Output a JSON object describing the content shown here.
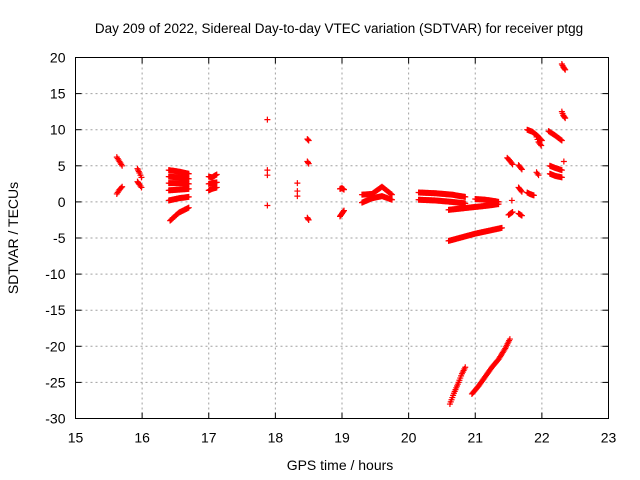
{
  "chart_data": {
    "type": "scatter",
    "title": "Day 209 of 2022, Sidereal Day-to-day VTEC variation (SDTVAR) for receiver ptgg",
    "xlabel": "GPS time / hours",
    "ylabel": "SDTVAR / TECUs",
    "xlim": [
      15,
      23
    ],
    "ylim": [
      -30,
      20
    ],
    "xticks": [
      15,
      16,
      17,
      18,
      19,
      20,
      21,
      22,
      23
    ],
    "yticks": [
      -30,
      -25,
      -20,
      -15,
      -10,
      -5,
      0,
      5,
      10,
      15,
      20
    ],
    "grid": true,
    "marker": "plus",
    "color": "#ff0000",
    "tracks": [
      {
        "x": [
          15.62,
          15.66,
          15.7
        ],
        "y": [
          6.2,
          5.6,
          5.0
        ]
      },
      {
        "x": [
          15.62,
          15.66,
          15.7
        ],
        "y": [
          1.1,
          1.7,
          2.1
        ]
      },
      {
        "x": [
          15.93,
          15.96,
          15.99
        ],
        "y": [
          4.6,
          4.0,
          3.4
        ]
      },
      {
        "x": [
          15.93,
          15.96,
          15.99
        ],
        "y": [
          2.8,
          2.4,
          2.0
        ]
      },
      {
        "x": [
          16.4,
          16.55,
          16.7
        ],
        "y": [
          4.4,
          4.2,
          3.9
        ]
      },
      {
        "x": [
          16.4,
          16.55,
          16.7
        ],
        "y": [
          3.5,
          3.4,
          3.2
        ]
      },
      {
        "x": [
          16.4,
          16.55,
          16.7
        ],
        "y": [
          2.6,
          2.6,
          2.5
        ]
      },
      {
        "x": [
          16.4,
          16.55,
          16.7
        ],
        "y": [
          1.6,
          1.7,
          1.8
        ]
      },
      {
        "x": [
          16.4,
          16.55,
          16.7
        ],
        "y": [
          0.2,
          0.5,
          0.7
        ]
      },
      {
        "x": [
          16.42,
          16.55,
          16.7
        ],
        "y": [
          -2.6,
          -1.5,
          -0.8
        ]
      },
      {
        "x": [
          17.0,
          17.05,
          17.12
        ],
        "y": [
          3.5,
          3.4,
          3.8
        ]
      },
      {
        "x": [
          17.0,
          17.05,
          17.12
        ],
        "y": [
          2.5,
          2.6,
          2.7
        ]
      },
      {
        "x": [
          17.0,
          17.05,
          17.12
        ],
        "y": [
          1.6,
          1.8,
          2.0
        ]
      },
      {
        "x": [
          17.88
        ],
        "y": [
          11.4
        ]
      },
      {
        "x": [
          17.88,
          17.88
        ],
        "y": [
          4.4,
          3.7
        ]
      },
      {
        "x": [
          17.88
        ],
        "y": [
          -0.5
        ]
      },
      {
        "x": [
          18.33,
          18.33,
          18.33
        ],
        "y": [
          2.6,
          1.5,
          0.8
        ]
      },
      {
        "x": [
          18.48,
          18.5
        ],
        "y": [
          8.7,
          8.5
        ]
      },
      {
        "x": [
          18.48,
          18.5
        ],
        "y": [
          5.6,
          5.3
        ]
      },
      {
        "x": [
          18.48,
          18.5
        ],
        "y": [
          -2.2,
          -2.5
        ]
      },
      {
        "x": [
          18.97,
          19.0,
          19.03
        ],
        "y": [
          1.8,
          1.9,
          1.7
        ]
      },
      {
        "x": [
          18.97,
          19.0,
          19.03
        ],
        "y": [
          -2.0,
          -1.6,
          -1.2
        ]
      },
      {
        "x": [
          19.3,
          19.45,
          19.6,
          19.75
        ],
        "y": [
          1.0,
          1.1,
          2.1,
          1.0
        ]
      },
      {
        "x": [
          19.3,
          19.45,
          19.6,
          19.75
        ],
        "y": [
          -0.1,
          0.5,
          0.8,
          0.3
        ]
      },
      {
        "x": [
          20.15,
          20.4,
          20.65,
          20.85
        ],
        "y": [
          1.3,
          1.2,
          1.0,
          0.7
        ]
      },
      {
        "x": [
          20.15,
          20.4,
          20.65,
          20.85
        ],
        "y": [
          0.3,
          0.2,
          0.0,
          -0.2
        ]
      },
      {
        "x": [
          20.6,
          20.8,
          21.0,
          21.2,
          21.35
        ],
        "y": [
          -1.1,
          -0.9,
          -0.7,
          -0.5,
          -0.3
        ]
      },
      {
        "x": [
          21.0,
          21.15,
          21.3,
          21.35
        ],
        "y": [
          0.4,
          0.3,
          0.1,
          0.0
        ]
      },
      {
        "x": [
          20.6,
          20.8,
          21.0,
          21.2,
          21.4
        ],
        "y": [
          -5.4,
          -4.9,
          -4.4,
          -4.0,
          -3.6
        ]
      },
      {
        "x": [
          20.62,
          20.68,
          20.75,
          20.8,
          20.85
        ],
        "y": [
          -28.0,
          -26.5,
          -25.0,
          -23.8,
          -22.9
        ]
      },
      {
        "x": [
          20.95,
          21.05,
          21.15,
          21.25,
          21.35,
          21.45,
          21.52
        ],
        "y": [
          -26.6,
          -25.5,
          -24.2,
          -22.9,
          -21.8,
          -20.3,
          -19.0
        ]
      },
      {
        "x": [
          21.48,
          21.52,
          21.56
        ],
        "y": [
          6.1,
          5.7,
          5.2
        ]
      },
      {
        "x": [
          21.5,
          21.56
        ],
        "y": [
          -1.8,
          -1.4
        ]
      },
      {
        "x": [
          21.55
        ],
        "y": [
          0.2
        ]
      },
      {
        "x": [
          21.65,
          21.7
        ],
        "y": [
          5.1,
          4.5
        ]
      },
      {
        "x": [
          21.65,
          21.7
        ],
        "y": [
          2.0,
          1.4
        ]
      },
      {
        "x": [
          21.65,
          21.7
        ],
        "y": [
          -1.6,
          -1.9
        ]
      },
      {
        "x": [
          21.78,
          21.82,
          21.88
        ],
        "y": [
          1.3,
          1.1,
          0.9
        ]
      },
      {
        "x": [
          21.78,
          21.86,
          21.94,
          22.0
        ],
        "y": [
          10.0,
          9.7,
          9.1,
          8.5
        ]
      },
      {
        "x": [
          21.92,
          21.95,
          21.99
        ],
        "y": [
          9.0,
          8.3,
          7.8
        ]
      },
      {
        "x": [
          21.92,
          21.95
        ],
        "y": [
          4.1,
          3.7
        ]
      },
      {
        "x": [
          22.1,
          22.2,
          22.3
        ],
        "y": [
          9.8,
          9.2,
          8.5
        ]
      },
      {
        "x": [
          22.12,
          22.2,
          22.3
        ],
        "y": [
          5.0,
          4.7,
          4.4
        ]
      },
      {
        "x": [
          22.12,
          22.2,
          22.3
        ],
        "y": [
          3.9,
          3.6,
          3.4
        ]
      },
      {
        "x": [
          22.3,
          22.32,
          22.35
        ],
        "y": [
          12.5,
          12.0,
          11.6
        ]
      },
      {
        "x": [
          22.3,
          22.32,
          22.35
        ],
        "y": [
          19.1,
          18.7,
          18.3
        ]
      },
      {
        "x": [
          22.33
        ],
        "y": [
          5.6
        ]
      }
    ]
  }
}
